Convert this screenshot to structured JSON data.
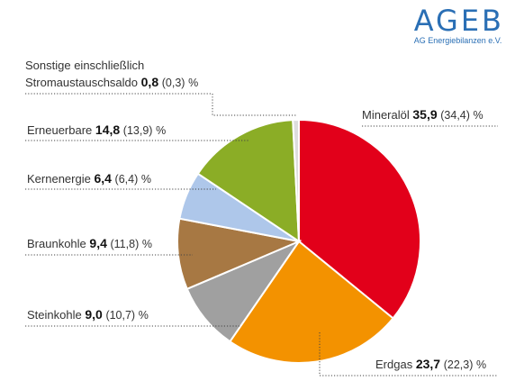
{
  "logo": {
    "main": "AGEB",
    "sub": "AG Energiebilanzen e.V."
  },
  "chart_data": {
    "type": "pie",
    "unit": "%",
    "start": "12 o'clock",
    "direction": "clockwise",
    "slices": [
      {
        "label": "Mineralöl",
        "value": 35.9,
        "value_text": "35,9",
        "prev_text": "(34,4)",
        "color": "#e2001a"
      },
      {
        "label": "Erdgas",
        "value": 23.7,
        "value_text": "23,7",
        "prev_text": "(22,3)",
        "color": "#f39200"
      },
      {
        "label": "Steinkohle",
        "value": 9.0,
        "value_text": "9,0",
        "prev_text": "(10,7)",
        "color": "#a0a0a0"
      },
      {
        "label": "Braunkohle",
        "value": 9.4,
        "value_text": "9,4",
        "prev_text": "(11,8)",
        "color": "#a77843"
      },
      {
        "label": "Kernenergie",
        "value": 6.4,
        "value_text": "6,4",
        "prev_text": "(6,4)",
        "color": "#aec7ea"
      },
      {
        "label": "Erneuerbare",
        "value": 14.8,
        "value_text": "14,8",
        "prev_text": "(13,9)",
        "color": "#8bad26"
      },
      {
        "label_line1": "Sonstige einschließlich",
        "label": "Stromaustauschsaldo",
        "value": 0.8,
        "value_text": "0,8",
        "prev_text": "(0,3)",
        "color": "#dddddd"
      }
    ]
  }
}
